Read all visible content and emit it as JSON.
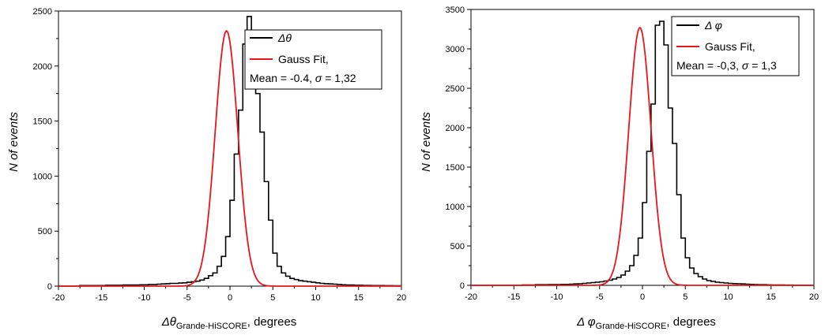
{
  "chart_data": [
    {
      "type": "line",
      "xlim": [
        -20,
        20
      ],
      "ylim": [
        0,
        2500
      ],
      "xticks": [
        -20,
        -15,
        -10,
        -5,
        0,
        5,
        10,
        15,
        20
      ],
      "yticks": [
        0,
        500,
        1000,
        1500,
        2000,
        2500
      ],
      "xlabel": {
        "symbol": "Δθ",
        "subscript": "Grande-HiSCORE",
        "suffix": ", degrees"
      },
      "ylabel": "N of events",
      "legend": {
        "position": "top-right",
        "entries": [
          "Δθ",
          "Gauss Fit,"
        ],
        "note": {
          "prefix": "Mean = -0.4, ",
          "sigma": "σ",
          "suffix": " = 1,32"
        }
      },
      "fit": {
        "mean": -0.4,
        "sigma": 1.32,
        "amplitude": 2320
      },
      "series": [
        {
          "style": "step",
          "color": "#000000",
          "bin_width": 0.5,
          "bin_start": -20,
          "values": [
            0,
            0,
            0,
            0,
            0,
            5,
            5,
            5,
            5,
            5,
            5,
            8,
            8,
            8,
            8,
            10,
            10,
            10,
            10,
            12,
            12,
            15,
            15,
            18,
            20,
            22,
            25,
            25,
            28,
            30,
            35,
            40,
            45,
            55,
            70,
            95,
            120,
            180,
            270,
            450,
            780,
            1200,
            1600,
            2200,
            2450,
            2300,
            1750,
            1400,
            950,
            600,
            300,
            180,
            120,
            90,
            70,
            60,
            50,
            45,
            40,
            35,
            30,
            25,
            22,
            20,
            18,
            15,
            12,
            10,
            10,
            8,
            8,
            6,
            6,
            5,
            5,
            5,
            4,
            4,
            3,
            3
          ]
        },
        {
          "style": "gauss",
          "color": "#e8161c"
        }
      ]
    },
    {
      "type": "line",
      "xlim": [
        -20,
        20
      ],
      "ylim": [
        0,
        3500
      ],
      "xticks": [
        -20,
        -15,
        -10,
        -5,
        0,
        5,
        10,
        15,
        20
      ],
      "yticks": [
        0,
        500,
        1000,
        1500,
        2000,
        2500,
        3000,
        3500
      ],
      "xlabel": {
        "symbol": "Δ φ",
        "subscript": "Grande-HiSCORE",
        "suffix": ", degrees"
      },
      "ylabel": "N of events",
      "legend": {
        "position": "top-right",
        "entries": [
          "Δ φ",
          "Gauss Fit,"
        ],
        "note": {
          "prefix": "Mean = -0,3, ",
          "sigma": "σ",
          "suffix": " = 1,3"
        }
      },
      "fit": {
        "mean": -0.3,
        "sigma": 1.3,
        "amplitude": 3270
      },
      "series": [
        {
          "style": "step",
          "color": "#000000",
          "bin_width": 0.5,
          "bin_start": -20,
          "values": [
            0,
            0,
            0,
            0,
            0,
            0,
            0,
            0,
            0,
            0,
            0,
            0,
            5,
            5,
            5,
            8,
            8,
            8,
            10,
            10,
            10,
            12,
            12,
            15,
            18,
            20,
            25,
            30,
            35,
            40,
            45,
            55,
            65,
            80,
            100,
            130,
            180,
            250,
            380,
            600,
            1050,
            1700,
            2300,
            3300,
            3350,
            3050,
            2250,
            1800,
            1150,
            600,
            350,
            220,
            150,
            110,
            80,
            60,
            50,
            40,
            35,
            30,
            25,
            22,
            20,
            18,
            15,
            12,
            10,
            8,
            8,
            6,
            5,
            5,
            4,
            3,
            3,
            2,
            2,
            1,
            1,
            0
          ]
        },
        {
          "style": "gauss",
          "color": "#e8161c"
        }
      ]
    }
  ]
}
